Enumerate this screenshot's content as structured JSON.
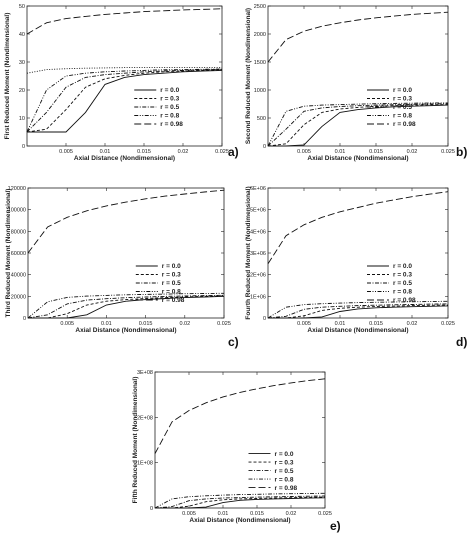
{
  "chart_data": [
    {
      "type": "line",
      "panel_label": "a)",
      "xlabel": "Axial Distance (Nondimensional)",
      "ylabel": "First Reduced Moment (Nondimensional)",
      "xlim": [
        0,
        0.025
      ],
      "ylim": [
        0,
        50
      ],
      "x_ticks": [
        "0.005",
        "0.01",
        "0.015",
        "0.02",
        "0.025"
      ],
      "y_ticks": [
        "0",
        "10",
        "20",
        "30",
        "40",
        "50"
      ],
      "grid": false,
      "legend_position": "center-right",
      "x": [
        0,
        0.0025,
        0.005,
        0.0075,
        0.01,
        0.0125,
        0.015,
        0.0175,
        0.02,
        0.0225,
        0.025
      ],
      "series": [
        {
          "name": "r = 0.0",
          "dash": "solid",
          "values": [
            5,
            5,
            5,
            12,
            22,
            24.5,
            25.5,
            26,
            26.5,
            26.8,
            27
          ]
        },
        {
          "name": "r = 0.3",
          "dash": "dashed",
          "values": [
            5,
            6,
            13,
            21,
            24,
            25.2,
            26,
            26.5,
            26.8,
            27,
            27.2
          ]
        },
        {
          "name": "r = 0.5",
          "dash": "dashdot",
          "values": [
            5,
            12,
            21,
            24.5,
            25.5,
            26,
            26.5,
            26.8,
            27,
            27.2,
            27.4
          ]
        },
        {
          "name": "r = 0.8",
          "dash": "dashdot2",
          "values": [
            5,
            20,
            25,
            26,
            26.5,
            26.8,
            27,
            27.2,
            27.3,
            27.4,
            27.5
          ]
        },
        {
          "name": "r = 0.98",
          "dash": "longdash",
          "values": [
            40,
            44,
            45.5,
            46.3,
            47,
            47.5,
            48,
            48.3,
            48.6,
            48.8,
            49
          ]
        },
        {
          "name": "",
          "dash": "dotted",
          "values": [
            26,
            27.3,
            27.6,
            27.8,
            27.9,
            28,
            28,
            28,
            28,
            28,
            28
          ]
        }
      ]
    },
    {
      "type": "line",
      "panel_label": "b)",
      "xlabel": "Axial Distance (Nondimensional)",
      "ylabel": "Second Reduced Moment (Nondimensional)",
      "xlim": [
        0,
        0.025
      ],
      "ylim": [
        0,
        2500
      ],
      "x_ticks": [
        "0.005",
        "0.01",
        "0.015",
        "0.02",
        "0.025"
      ],
      "y_ticks": [
        "0",
        "500",
        "1000",
        "1500",
        "2000",
        "2500"
      ],
      "grid": false,
      "legend_position": "center-right",
      "x": [
        0,
        0.0025,
        0.005,
        0.0075,
        0.01,
        0.0125,
        0.015,
        0.0175,
        0.02,
        0.0225,
        0.025
      ],
      "series": [
        {
          "name": "r = 0.0",
          "dash": "solid",
          "values": [
            0,
            0,
            20,
            350,
            600,
            650,
            680,
            700,
            710,
            720,
            730
          ]
        },
        {
          "name": "r = 0.3",
          "dash": "dashed",
          "values": [
            0,
            40,
            380,
            600,
            660,
            690,
            710,
            720,
            730,
            735,
            740
          ]
        },
        {
          "name": "r = 0.5",
          "dash": "dashdot",
          "values": [
            0,
            300,
            620,
            680,
            705,
            720,
            730,
            738,
            745,
            750,
            755
          ]
        },
        {
          "name": "r = 0.8",
          "dash": "dashdot2",
          "values": [
            0,
            620,
            710,
            730,
            740,
            748,
            755,
            760,
            765,
            768,
            770
          ]
        },
        {
          "name": "r = 0.98",
          "dash": "longdash",
          "values": [
            1500,
            1900,
            2050,
            2140,
            2200,
            2250,
            2290,
            2320,
            2350,
            2370,
            2390
          ]
        }
      ]
    },
    {
      "type": "line",
      "panel_label": "c)",
      "xlabel": "Axial Distance (Nondimensional)",
      "ylabel": "Third Reduced Moment (Nondimensional)",
      "xlim": [
        0,
        0.025
      ],
      "ylim": [
        0,
        120000
      ],
      "x_ticks": [
        "0.005",
        "0.01",
        "0.015",
        "0.02",
        "0.025"
      ],
      "y_ticks": [
        "0",
        "20000",
        "40000",
        "60000",
        "80000",
        "100000",
        "120000"
      ],
      "grid": false,
      "legend_position": "center-right",
      "x": [
        0,
        0.0025,
        0.005,
        0.0075,
        0.01,
        0.0125,
        0.015,
        0.0175,
        0.02,
        0.0225,
        0.025
      ],
      "series": [
        {
          "name": "r = 0.0",
          "dash": "solid",
          "values": [
            0,
            0,
            0,
            3000,
            12000,
            15500,
            17000,
            18000,
            18800,
            19400,
            20000
          ]
        },
        {
          "name": "r = 0.3",
          "dash": "dashed",
          "values": [
            0,
            0,
            4000,
            12000,
            15500,
            17000,
            18000,
            18800,
            19400,
            20000,
            20400
          ]
        },
        {
          "name": "r = 0.5",
          "dash": "dashdot",
          "values": [
            0,
            3000,
            13000,
            16500,
            17800,
            18700,
            19400,
            19900,
            20300,
            20700,
            21000
          ]
        },
        {
          "name": "r = 0.8",
          "dash": "dashdot2",
          "values": [
            0,
            15000,
            19000,
            20200,
            20900,
            21400,
            21800,
            22100,
            22400,
            22600,
            22800
          ]
        },
        {
          "name": "r = 0.98",
          "dash": "longdash",
          "values": [
            60000,
            84000,
            93000,
            99000,
            103500,
            107000,
            110000,
            112500,
            114500,
            116300,
            118000
          ]
        }
      ]
    },
    {
      "type": "line",
      "panel_label": "d)",
      "xlabel": "Axial Distance (Nondimensional)",
      "ylabel": "Fourth Reduced Moment (Nondimensional)",
      "xlim": [
        0,
        0.025
      ],
      "ylim": [
        0,
        6000000
      ],
      "x_ticks": [
        "0.005",
        "0.01",
        "0.015",
        "0.02",
        "0.025"
      ],
      "y_ticks": [
        "0",
        "1E+06",
        "2E+06",
        "3E+06",
        "4E+06",
        "5E+06",
        "6E+06"
      ],
      "grid": false,
      "legend_position": "center-right",
      "x": [
        0,
        0.0025,
        0.005,
        0.0075,
        0.01,
        0.0125,
        0.015,
        0.0175,
        0.02,
        0.0225,
        0.025
      ],
      "series": [
        {
          "name": "r = 0.0",
          "dash": "solid",
          "values": [
            0,
            0,
            0,
            50000,
            300000,
            420000,
            470000,
            500000,
            520000,
            540000,
            560000
          ]
        },
        {
          "name": "r = 0.3",
          "dash": "dashed",
          "values": [
            0,
            0,
            100000,
            350000,
            450000,
            500000,
            530000,
            550000,
            570000,
            585000,
            600000
          ]
        },
        {
          "name": "r = 0.5",
          "dash": "dashdot",
          "values": [
            0,
            80000,
            400000,
            500000,
            540000,
            570000,
            590000,
            610000,
            625000,
            640000,
            650000
          ]
        },
        {
          "name": "r = 0.8",
          "dash": "dashdot2",
          "values": [
            0,
            500000,
            620000,
            660000,
            690000,
            710000,
            725000,
            740000,
            750000,
            760000,
            770000
          ]
        },
        {
          "name": "r = 0.98",
          "dash": "longdash",
          "values": [
            2500000,
            3800000,
            4300000,
            4650000,
            4900000,
            5100000,
            5300000,
            5450000,
            5600000,
            5720000,
            5830000
          ]
        }
      ]
    },
    {
      "type": "line",
      "panel_label": "e)",
      "xlabel": "Axial Distance (Nondimensional)",
      "ylabel": "Fifth Reduced Moment (Nondimensional)",
      "xlim": [
        0,
        0.025
      ],
      "ylim": [
        0,
        300000000
      ],
      "x_ticks": [
        "0.005",
        "0.01",
        "0.015",
        "0.02",
        "0.025"
      ],
      "y_ticks": [
        "0",
        "1E+08",
        "2E+08",
        "3E+08"
      ],
      "grid": false,
      "legend_position": "center-right",
      "x": [
        0,
        0.0025,
        0.005,
        0.0075,
        0.01,
        0.0125,
        0.015,
        0.0175,
        0.02,
        0.0225,
        0.025
      ],
      "series": [
        {
          "name": "r = 0.0",
          "dash": "solid",
          "values": [
            0,
            0,
            0,
            2000000,
            12000000,
            17000000,
            19000000,
            20000000,
            21000000,
            21800000,
            22500000
          ]
        },
        {
          "name": "r = 0.3",
          "dash": "dashed",
          "values": [
            0,
            0,
            4000000,
            14000000,
            18000000,
            20000000,
            21000000,
            22000000,
            22800000,
            23500000,
            24000000
          ]
        },
        {
          "name": "r = 0.5",
          "dash": "dashdot",
          "values": [
            0,
            3000000,
            16000000,
            20000000,
            22000000,
            23000000,
            24000000,
            24800000,
            25400000,
            26000000,
            26500000
          ]
        },
        {
          "name": "r = 0.8",
          "dash": "dashdot2",
          "values": [
            0,
            20000000,
            25000000,
            27000000,
            28500000,
            29500000,
            30300000,
            31000000,
            31500000,
            32000000,
            32500000
          ]
        },
        {
          "name": "r = 0.98",
          "dash": "longdash",
          "values": [
            120000000,
            190000000,
            215000000,
            232000000,
            245000000,
            255000000,
            263000000,
            270000000,
            276000000,
            281000000,
            285000000
          ]
        }
      ]
    }
  ]
}
